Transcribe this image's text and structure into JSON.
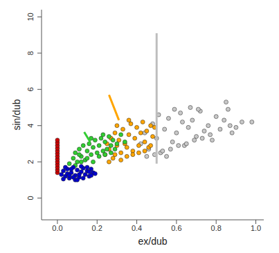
{
  "chart_data": {
    "type": "scatter",
    "x_label": "ex/dub",
    "y_label": "sin/dub",
    "xlim": [
      -0.08,
      1.04
    ],
    "ylim": [
      -1.2,
      10.4
    ],
    "xticks": [
      {
        "value": 0,
        "label": "0.0"
      },
      0.2,
      0.4,
      0.6,
      0.8,
      {
        "value": 1,
        "label": "1.0"
      }
    ],
    "yticks": [
      0,
      2,
      4,
      6,
      8,
      10
    ],
    "grid": false,
    "series": [
      {
        "type": "scatter",
        "color": "#c8c8c8",
        "marker": "circle",
        "x": [
          0.42,
          0.44,
          0.46,
          0.48,
          0.5,
          0.52,
          0.54,
          0.56,
          0.58,
          0.6,
          0.62,
          0.64,
          0.66,
          0.68,
          0.7,
          0.72,
          0.74,
          0.76,
          0.78,
          0.8,
          0.82,
          0.84,
          0.86,
          0.88,
          0.9,
          0.93,
          0.98,
          0.45,
          0.49,
          0.53,
          0.57,
          0.61,
          0.65,
          0.69,
          0.73,
          0.77,
          0.51,
          0.55,
          0.59,
          0.63,
          0.67,
          0.71,
          0.85,
          0.87
        ],
        "values": [
          3.0,
          3.6,
          2.7,
          4.1,
          3.3,
          2.5,
          3.8,
          4.4,
          3.1,
          3.6,
          4.7,
          2.9,
          3.9,
          4.3,
          3.4,
          4.8,
          3.7,
          4.0,
          3.2,
          4.5,
          3.8,
          4.3,
          4.9,
          3.6,
          3.9,
          4.2,
          4.2,
          2.3,
          2.4,
          2.6,
          2.7,
          2.9,
          3.0,
          3.2,
          3.3,
          3.5,
          4.6,
          2.3,
          4.9,
          4.2,
          5.0,
          4.9,
          5.3,
          4.0
        ]
      },
      {
        "type": "scatter",
        "color": "#ffa500",
        "marker": "circle",
        "x": [
          0.24,
          0.25,
          0.26,
          0.27,
          0.28,
          0.29,
          0.3,
          0.31,
          0.32,
          0.33,
          0.34,
          0.35,
          0.36,
          0.37,
          0.38,
          0.39,
          0.4,
          0.41,
          0.42,
          0.43,
          0.44,
          0.45,
          0.46,
          0.47,
          0.48,
          0.49,
          0.26,
          0.29,
          0.32,
          0.35,
          0.38,
          0.41,
          0.44,
          0.47,
          0.3,
          0.36
        ],
        "values": [
          2.4,
          3.0,
          2.7,
          3.3,
          2.2,
          3.6,
          2.9,
          3.2,
          2.5,
          3.8,
          3.0,
          2.8,
          3.5,
          4.1,
          2.6,
          3.3,
          3.9,
          2.9,
          3.6,
          4.2,
          3.1,
          3.7,
          2.8,
          4.0,
          3.4,
          3.9,
          2.0,
          2.4,
          2.1,
          2.3,
          2.4,
          2.5,
          2.6,
          2.9,
          4.0,
          4.3
        ]
      },
      {
        "type": "scatter",
        "color": "#32cd32",
        "marker": "circle",
        "x": [
          0.06,
          0.08,
          0.09,
          0.1,
          0.11,
          0.12,
          0.13,
          0.14,
          0.15,
          0.16,
          0.17,
          0.18,
          0.19,
          0.2,
          0.21,
          0.22,
          0.23,
          0.24,
          0.25,
          0.26,
          0.27,
          0.28,
          0.3,
          0.32,
          0.34,
          0.09,
          0.12,
          0.15,
          0.18,
          0.21,
          0.24,
          0.27,
          0.11,
          0.17,
          0.23,
          0.29
        ],
        "values": [
          1.9,
          2.2,
          2.5,
          2.0,
          2.7,
          2.3,
          2.9,
          2.1,
          2.6,
          3.0,
          2.4,
          2.8,
          3.2,
          2.5,
          2.9,
          3.3,
          2.6,
          3.1,
          2.7,
          3.4,
          2.9,
          3.2,
          3.0,
          3.5,
          3.1,
          1.8,
          2.0,
          2.2,
          2.0,
          2.3,
          2.4,
          2.5,
          2.4,
          3.3,
          3.5,
          2.7
        ]
      },
      {
        "type": "scatter",
        "color": "#0000cd",
        "marker": "circle",
        "x": [
          0.02,
          0.03,
          0.04,
          0.05,
          0.06,
          0.07,
          0.08,
          0.09,
          0.1,
          0.11,
          0.12,
          0.13,
          0.14,
          0.15,
          0.16,
          0.17,
          0.18,
          0.19,
          0.03,
          0.05,
          0.07,
          0.09,
          0.11,
          0.13,
          0.15,
          0.17,
          0.04,
          0.08,
          0.12,
          0.16,
          0.1,
          0.06
        ],
        "values": [
          1.3,
          1.5,
          1.2,
          1.6,
          1.1,
          1.4,
          1.7,
          1.25,
          1.55,
          1.15,
          1.45,
          1.65,
          1.3,
          1.5,
          1.2,
          1.6,
          1.4,
          1.35,
          1.05,
          1.35,
          1.6,
          1.0,
          1.3,
          1.1,
          1.7,
          1.25,
          1.7,
          1.15,
          1.75,
          1.45,
          1.0,
          1.25
        ]
      },
      {
        "type": "scatter",
        "color": "#cc0000",
        "marker": "circle",
        "x": [
          0,
          0,
          0,
          0,
          0,
          0,
          0,
          0,
          0,
          0,
          0,
          0,
          0
        ],
        "values": [
          1.4,
          1.55,
          1.7,
          1.85,
          2.0,
          2.15,
          2.3,
          2.45,
          2.6,
          2.75,
          2.9,
          3.05,
          3.2
        ]
      },
      {
        "type": "line",
        "color": "#bebebe",
        "line_style": "solid",
        "x": [
          0.5,
          0.5
        ],
        "values": [
          1.9,
          9.1
        ]
      },
      {
        "type": "line",
        "color": "#ffa500",
        "line_style": "solid",
        "x": [
          0.26,
          0.31
        ],
        "values": [
          5.7,
          4.3
        ]
      },
      {
        "type": "line",
        "color": "#32cd32",
        "line_style": "solid",
        "x": [
          0.135,
          0.165
        ],
        "values": [
          3.65,
          3.1
        ]
      }
    ]
  }
}
